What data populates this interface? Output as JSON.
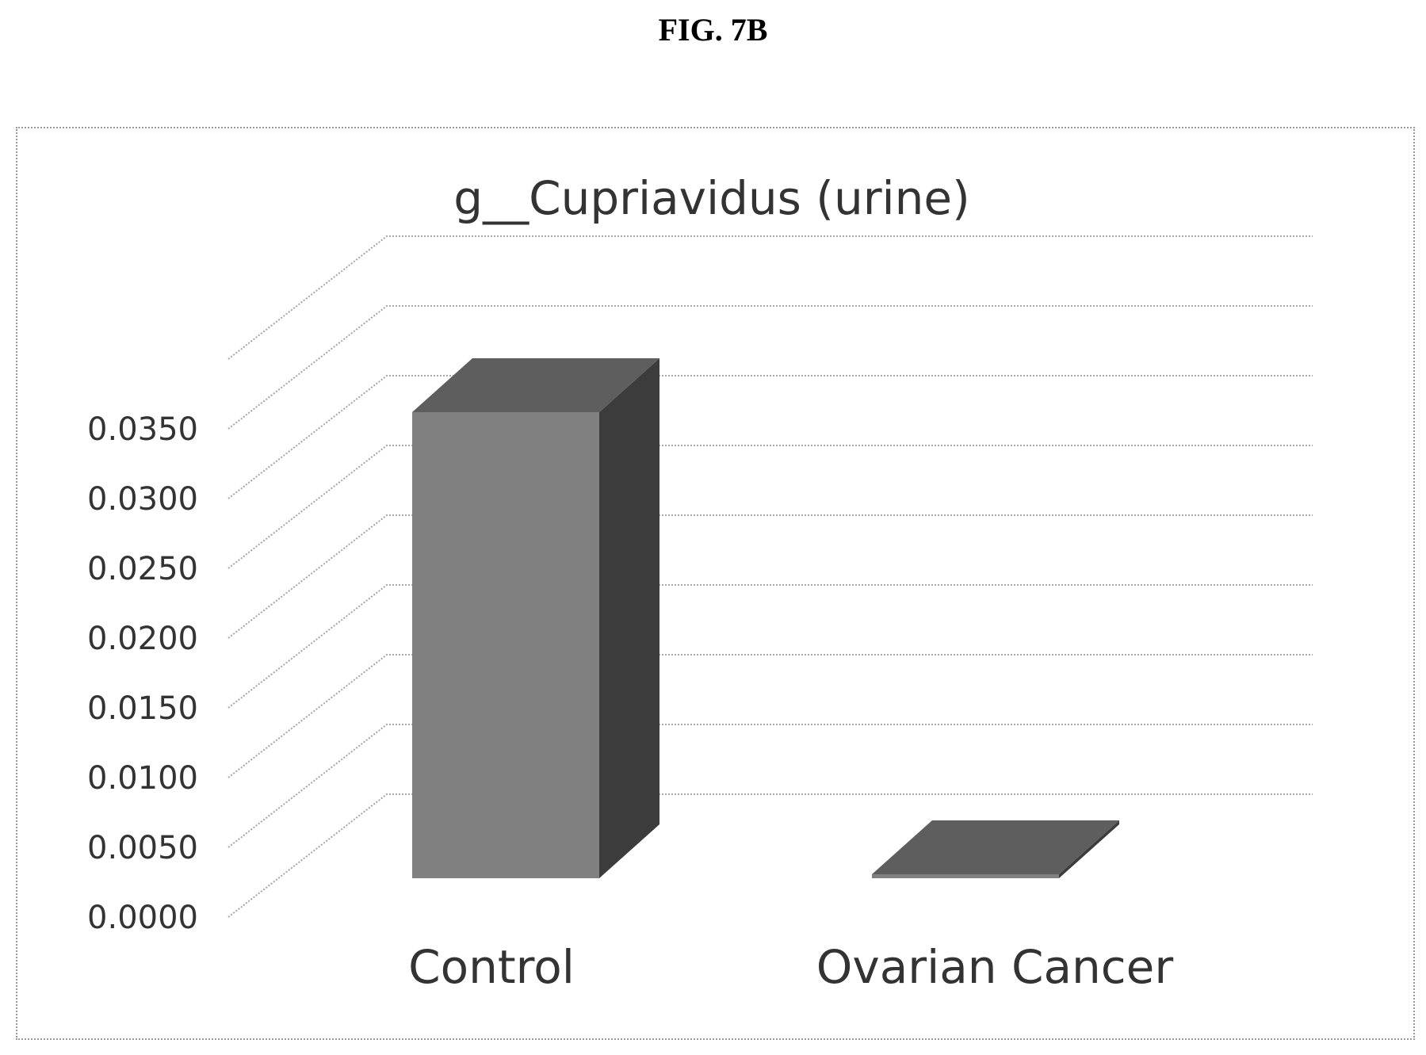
{
  "figure_label": "FIG. 7B",
  "chart_data": {
    "type": "bar",
    "title": "g__Cupriavidus (urine)",
    "categories": [
      "Control",
      "Ovarian Cancer"
    ],
    "values": [
      0.0354,
      0.0003
    ],
    "y_ticks": [
      "0.0000",
      "0.0050",
      "0.0100",
      "0.0150",
      "0.0200",
      "0.0250",
      "0.0300",
      "0.0350"
    ],
    "ylim": [
      0,
      0.04
    ],
    "grid": true,
    "legend": "none",
    "style": "3d-column",
    "colors": {
      "front": "#808080",
      "top": "#5e5e5e",
      "side": "#3c3c3c",
      "grid": "#a6a6a6",
      "text": "#333333"
    }
  }
}
